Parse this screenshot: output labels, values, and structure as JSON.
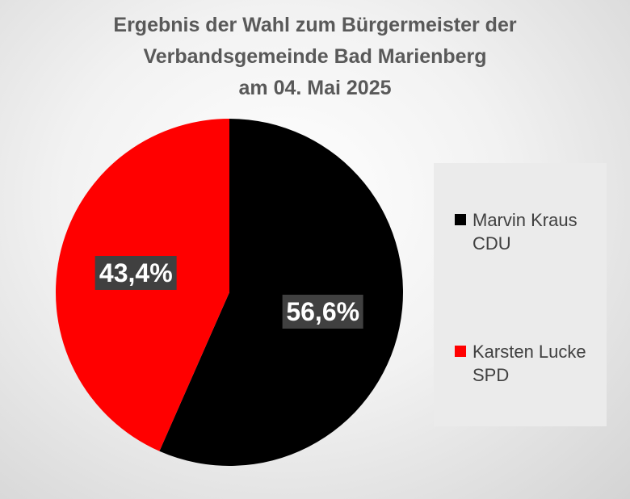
{
  "title_lines": [
    "Ergebnis der Wahl zum Bürgermeister der",
    "Verbandsgemeinde Bad Marienberg",
    "am 04. Mai 2025"
  ],
  "chart_data": {
    "type": "pie",
    "title": "Ergebnis der Wahl zum Bürgermeister der Verbandsgemeinde Bad Marienberg am 04. Mai 2025",
    "legend_position": "right",
    "slices": [
      {
        "label": "Marvin Kraus",
        "party": "CDU",
        "value": 56.6,
        "value_label": "56,6%",
        "color": "#000000"
      },
      {
        "label": "Karsten Lucke",
        "party": "SPD",
        "value": 43.4,
        "value_label": "43,4%",
        "color": "#ff0000"
      }
    ]
  }
}
